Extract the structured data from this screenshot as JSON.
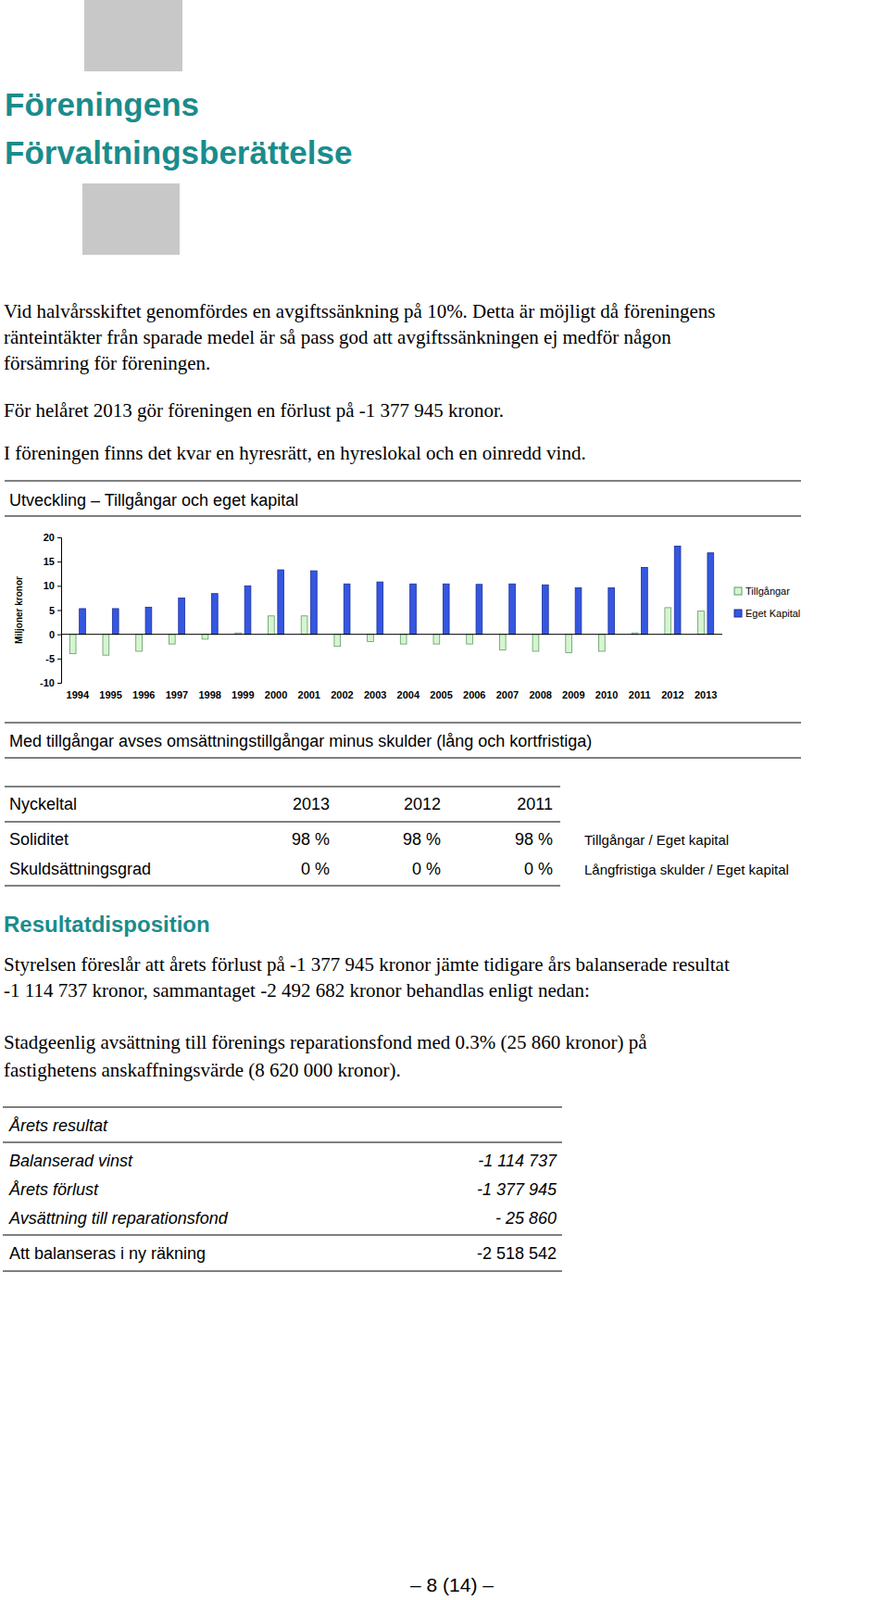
{
  "header": {
    "title_lines": [
      "Föreningens",
      "Förvaltningsberättelse"
    ]
  },
  "intro": {
    "paragraphs": [
      [
        "Vid halvårsskiftet genomfördes en avgiftssänkning på 10%. Detta är möjligt då föreningens",
        "ränteintäkter från sparade medel är så pass god att avgiftssänkningen ej medför någon",
        "försämring för föreningen."
      ],
      [
        "För helåret 2013 gör föreningen en förlust på -1 377 945 kronor."
      ],
      [
        "I föreningen finns det kvar en hyresrätt, en hyreslokal och en oinredd vind."
      ]
    ]
  },
  "chart_section": {
    "heading": "Utveckling – Tillgångar och eget kapital",
    "note": "Med tillgångar avses omsättningstillgångar minus skulder (lång och kortfristiga)"
  },
  "chart_data": {
    "type": "bar",
    "y_label": "Miljoner kronor",
    "categories": [
      "1994",
      "1995",
      "1996",
      "1997",
      "1998",
      "1999",
      "2000",
      "2001",
      "2002",
      "2003",
      "2004",
      "2005",
      "2006",
      "2007",
      "2008",
      "2009",
      "2010",
      "2011",
      "2012",
      "2013"
    ],
    "series": [
      {
        "name": "Tillgångar",
        "color": "#d6f5cf",
        "values": [
          -4,
          -4.3,
          -3.5,
          -2,
          -1,
          0.3,
          3.8,
          3.8,
          -2.5,
          -1.5,
          -2,
          -2,
          -2,
          -3.2,
          -3.5,
          -3.8,
          -3.5,
          0.3,
          5.5,
          4.8
        ]
      },
      {
        "name": "Eget Kapital",
        "color": "#3557e0",
        "values": [
          5.3,
          5.3,
          5.6,
          7.5,
          8.4,
          10,
          13.3,
          13.1,
          10.4,
          10.8,
          10.4,
          10.4,
          10.3,
          10.4,
          10.2,
          9.6,
          9.6,
          13.8,
          18.2,
          16.8
        ]
      }
    ],
    "ylim": [
      -10,
      20
    ],
    "yticks": [
      -10,
      -5,
      0,
      5,
      10,
      15,
      20
    ],
    "legend": "right"
  },
  "key_figures": {
    "columns": [
      "Nyckeltal",
      "2013",
      "2012",
      "2011"
    ],
    "rows": [
      {
        "label": "Soliditet",
        "values": [
          "98 %",
          "98 %",
          "98 %"
        ],
        "note": "Tillgångar / Eget kapital"
      },
      {
        "label": "Skuldsättningsgrad",
        "values": [
          "0 %",
          "0 %",
          "0 %"
        ],
        "note": "Långfristiga skulder / Eget kapital"
      }
    ]
  },
  "disposition": {
    "heading": "Resultatdisposition",
    "paragraphs": [
      [
        "Styrelsen föreslår att årets förlust på -1 377 945 kronor jämte tidigare års balanserade resultat",
        "-1 114 737 kronor, sammantaget -2 492 682 kronor behandlas enligt nedan:"
      ],
      [
        "Stadgeenlig avsättning till förenings reparationsfond med 0.3% (25 860 kronor) på",
        "fastighetens anskaffningsvärde (8 620 000 kronor)."
      ]
    ],
    "table": {
      "title": "Årets resultat",
      "rows": [
        {
          "label": "Balanserad vinst",
          "value": "-1 114 737"
        },
        {
          "label": "Årets förlust",
          "value": "-1 377 945"
        },
        {
          "label": "Avsättning till reparationsfond",
          "value": "- 25 860"
        }
      ],
      "total": {
        "label": "Att balanseras i ny räkning",
        "value": "-2 518 542"
      }
    }
  },
  "footer": {
    "page": "– 8 (14) –"
  }
}
